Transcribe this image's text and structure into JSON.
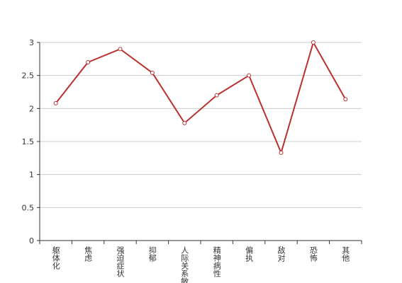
{
  "chart_data": {
    "type": "line",
    "categories": [
      "躯体化",
      "焦虑",
      "强迫症状",
      "抑郁",
      "人际关系敏感",
      "精神病性",
      "偏执",
      "敌对",
      "恐怖",
      "其他"
    ],
    "values": [
      2.08,
      2.7,
      2.9,
      2.54,
      1.78,
      2.2,
      2.5,
      1.33,
      3.0,
      2.14
    ],
    "color": "#b8312f",
    "ylim": [
      0,
      3
    ],
    "yticks": [
      0,
      0.5,
      1,
      1.5,
      2,
      2.5,
      3
    ],
    "grid": true
  }
}
